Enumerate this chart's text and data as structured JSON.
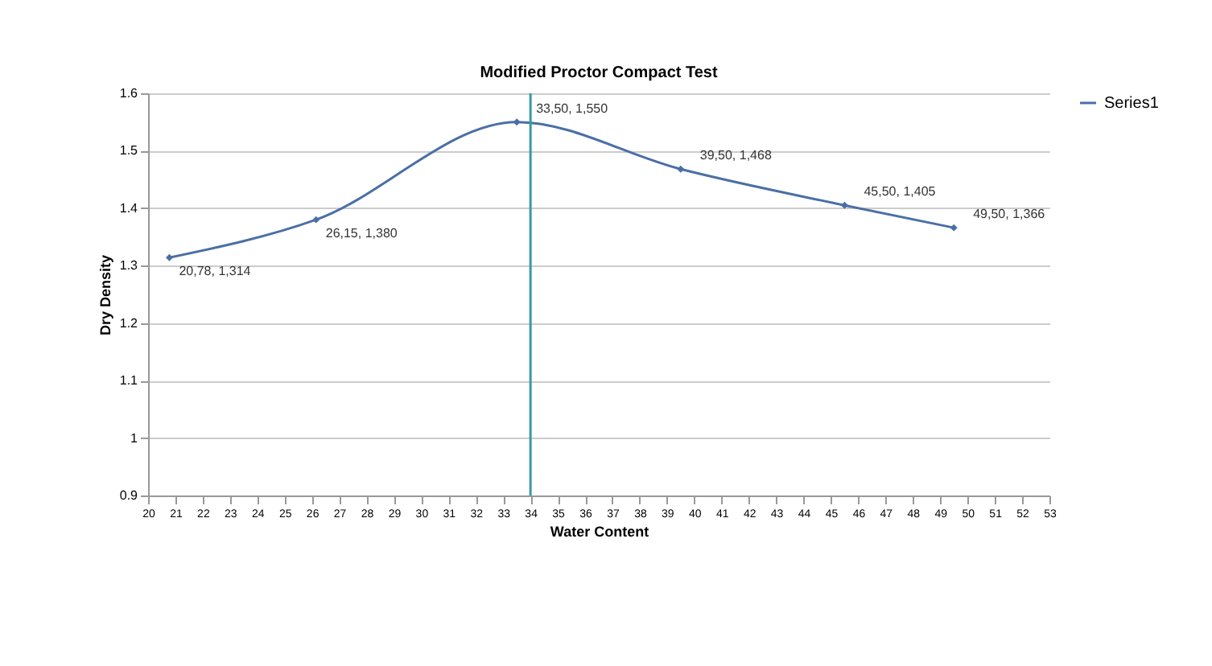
{
  "chart_data": {
    "type": "line",
    "title": "Modified Proctor Compact Test",
    "xlabel": "Water Content",
    "ylabel": "Dry Density",
    "x": [
      20.78,
      26.15,
      33.5,
      39.5,
      45.5,
      49.5
    ],
    "series": [
      {
        "name": "Series1",
        "color": "#4a6fa5",
        "values": [
          1.314,
          1.38,
          1.55,
          1.468,
          1.405,
          1.366
        ]
      }
    ],
    "xlim": [
      20,
      53
    ],
    "xticks": [
      20,
      21,
      22,
      23,
      24,
      25,
      26,
      27,
      28,
      29,
      30,
      31,
      32,
      33,
      34,
      35,
      36,
      37,
      38,
      39,
      40,
      41,
      42,
      43,
      44,
      45,
      46,
      47,
      48,
      49,
      50,
      51,
      52,
      53
    ],
    "ylim": [
      0.9,
      1.6
    ],
    "yticks": [
      0.9,
      1,
      1.1,
      1.2,
      1.3,
      1.4,
      1.5,
      1.6
    ],
    "ref_lines": [
      {
        "axis": "x",
        "value": 34,
        "color": "#3a9aa0"
      }
    ],
    "annotations": [
      {
        "text": "20,78, 1,314",
        "x": 20.78,
        "y": 1.314
      },
      {
        "text": "26,15, 1,380",
        "x": 26.15,
        "y": 1.38
      },
      {
        "text": "33,50, 1,550",
        "x": 33.5,
        "y": 1.55
      },
      {
        "text": "39,50, 1,468",
        "x": 39.5,
        "y": 1.468
      },
      {
        "text": "45,50, 1,405",
        "x": 45.5,
        "y": 1.405
      },
      {
        "text": "49,50, 1,366",
        "x": 49.5,
        "y": 1.366
      }
    ],
    "grid": "y",
    "legend": "right",
    "marker": "diamond",
    "line_style": "solid"
  }
}
